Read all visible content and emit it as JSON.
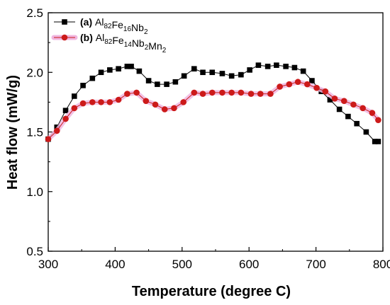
{
  "chart_data": {
    "type": "line",
    "xlabel": "Temperature (degree C)",
    "ylabel": "Heat flow (mW/g)",
    "xlim": [
      300,
      800
    ],
    "ylim": [
      0.5,
      2.5
    ],
    "xticks": [
      "300",
      "400",
      "500",
      "600",
      "700",
      "800"
    ],
    "yticks": [
      "0.5",
      "1.0",
      "1.5",
      "2.0",
      "2.5"
    ],
    "grid": false,
    "legend_position": "top-left",
    "series": [
      {
        "name": "(a) Al82Fe16Nb2",
        "legend": {
          "tag": "(a)",
          "parts": [
            [
              "Al",
              "82"
            ],
            [
              "Fe",
              "16"
            ],
            [
              "Nb",
              "2"
            ]
          ]
        },
        "color": "#000000",
        "marker": "square",
        "x": [
          300,
          313,
          326,
          339,
          352,
          366,
          379,
          392,
          405,
          418,
          424,
          436,
          450,
          463,
          477,
          490,
          503,
          518,
          531,
          545,
          560,
          574,
          588,
          601,
          614,
          628,
          641,
          655,
          668,
          681,
          694,
          708,
          721,
          735,
          748,
          761,
          775,
          788,
          793
        ],
        "y": [
          1.44,
          1.54,
          1.68,
          1.8,
          1.89,
          1.95,
          2.0,
          2.02,
          2.03,
          2.05,
          2.05,
          2.01,
          1.93,
          1.9,
          1.9,
          1.92,
          1.97,
          2.03,
          2.0,
          2.0,
          1.99,
          1.97,
          1.98,
          2.02,
          2.06,
          2.05,
          2.06,
          2.05,
          2.04,
          2.01,
          1.93,
          1.84,
          1.77,
          1.69,
          1.63,
          1.57,
          1.5,
          1.42,
          1.42
        ]
      },
      {
        "name": "(b) Al82Fe14Nb2Mn2",
        "legend": {
          "tag": "(b)",
          "parts": [
            [
              "Al",
              "82"
            ],
            [
              "Fe",
              "14"
            ],
            [
              "Nb",
              "2"
            ],
            [
              "Mn",
              "2"
            ]
          ]
        },
        "color": "#cc1a1a",
        "halo": "#f0b6e0",
        "marker": "circle",
        "x": [
          300,
          313,
          326,
          339,
          352,
          366,
          379,
          392,
          405,
          418,
          432,
          446,
          460,
          474,
          488,
          502,
          518,
          531,
          545,
          560,
          574,
          588,
          603,
          617,
          632,
          646,
          660,
          673,
          687,
          701,
          714,
          728,
          742,
          756,
          770,
          784,
          793
        ],
        "y": [
          1.44,
          1.51,
          1.61,
          1.7,
          1.74,
          1.75,
          1.75,
          1.75,
          1.77,
          1.82,
          1.83,
          1.76,
          1.73,
          1.69,
          1.7,
          1.75,
          1.83,
          1.82,
          1.83,
          1.83,
          1.83,
          1.83,
          1.82,
          1.82,
          1.82,
          1.88,
          1.9,
          1.92,
          1.9,
          1.87,
          1.84,
          1.78,
          1.76,
          1.73,
          1.7,
          1.66,
          1.6
        ]
      }
    ]
  }
}
